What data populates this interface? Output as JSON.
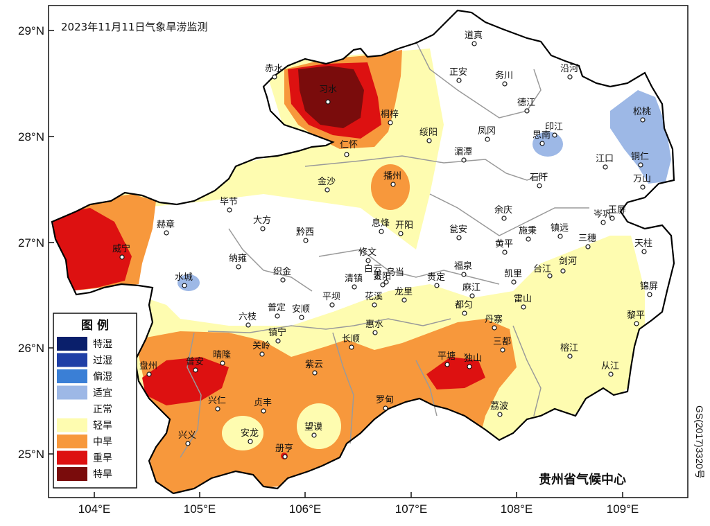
{
  "title": "2023年11月11日气象旱涝监测",
  "credit": "贵州省气候中心",
  "map_code": "GS(2017)3320号",
  "axes": {
    "lon_ticks": [
      "104°E",
      "105°E",
      "106°E",
      "107°E",
      "108°E",
      "109°E"
    ],
    "lat_ticks": [
      "29°N",
      "28°N",
      "27°N",
      "26°N",
      "25°N"
    ]
  },
  "legend": {
    "title": "图  例",
    "items": [
      {
        "label": "特湿",
        "color": "#0a1f6b"
      },
      {
        "label": "过湿",
        "color": "#1f3fa6"
      },
      {
        "label": "偏湿",
        "color": "#3a7fd6"
      },
      {
        "label": "适宜",
        "color": "#9db8e6"
      },
      {
        "label": "正常",
        "color": "#ffffff"
      },
      {
        "label": "轻旱",
        "color": "#fefcb0"
      },
      {
        "label": "中旱",
        "color": "#f7983c"
      },
      {
        "label": "重旱",
        "color": "#dd1111"
      },
      {
        "label": "特旱",
        "color": "#7a0c0c"
      }
    ]
  },
  "stations": [
    "赤水",
    "习水",
    "桐梓",
    "仁怀",
    "金沙",
    "播州",
    "道真",
    "正安",
    "务川",
    "沿河",
    "德江",
    "绥阳",
    "凤冈",
    "印江",
    "思南",
    "湄潭",
    "松桃",
    "铜仁",
    "江口",
    "万山",
    "石阡",
    "余庆",
    "岑巩",
    "玉屏",
    "毕节",
    "赫章",
    "威宁",
    "大方",
    "黔西",
    "息烽",
    "开阳",
    "瓮安",
    "施秉",
    "镇远",
    "三穗",
    "黄平",
    "天柱",
    "纳雍",
    "织金",
    "修文",
    "白云",
    "乌当",
    "贵阳",
    "福泉",
    "凯里",
    "剑河",
    "台江",
    "水城",
    "清镇",
    "平坝",
    "花溪",
    "龙里",
    "贵定",
    "麻江",
    "雷山",
    "锦屏",
    "六枝",
    "普定",
    "安顺",
    "都匀",
    "黎平",
    "惠水",
    "丹寨",
    "镇宁",
    "长顺",
    "三都",
    "关岭",
    "榕江",
    "盘州",
    "普安",
    "晴隆",
    "紫云",
    "平塘",
    "独山",
    "从江",
    "兴仁",
    "贞丰",
    "罗甸",
    "荔波",
    "安龙",
    "望谟",
    "兴义",
    "册亨"
  ]
}
